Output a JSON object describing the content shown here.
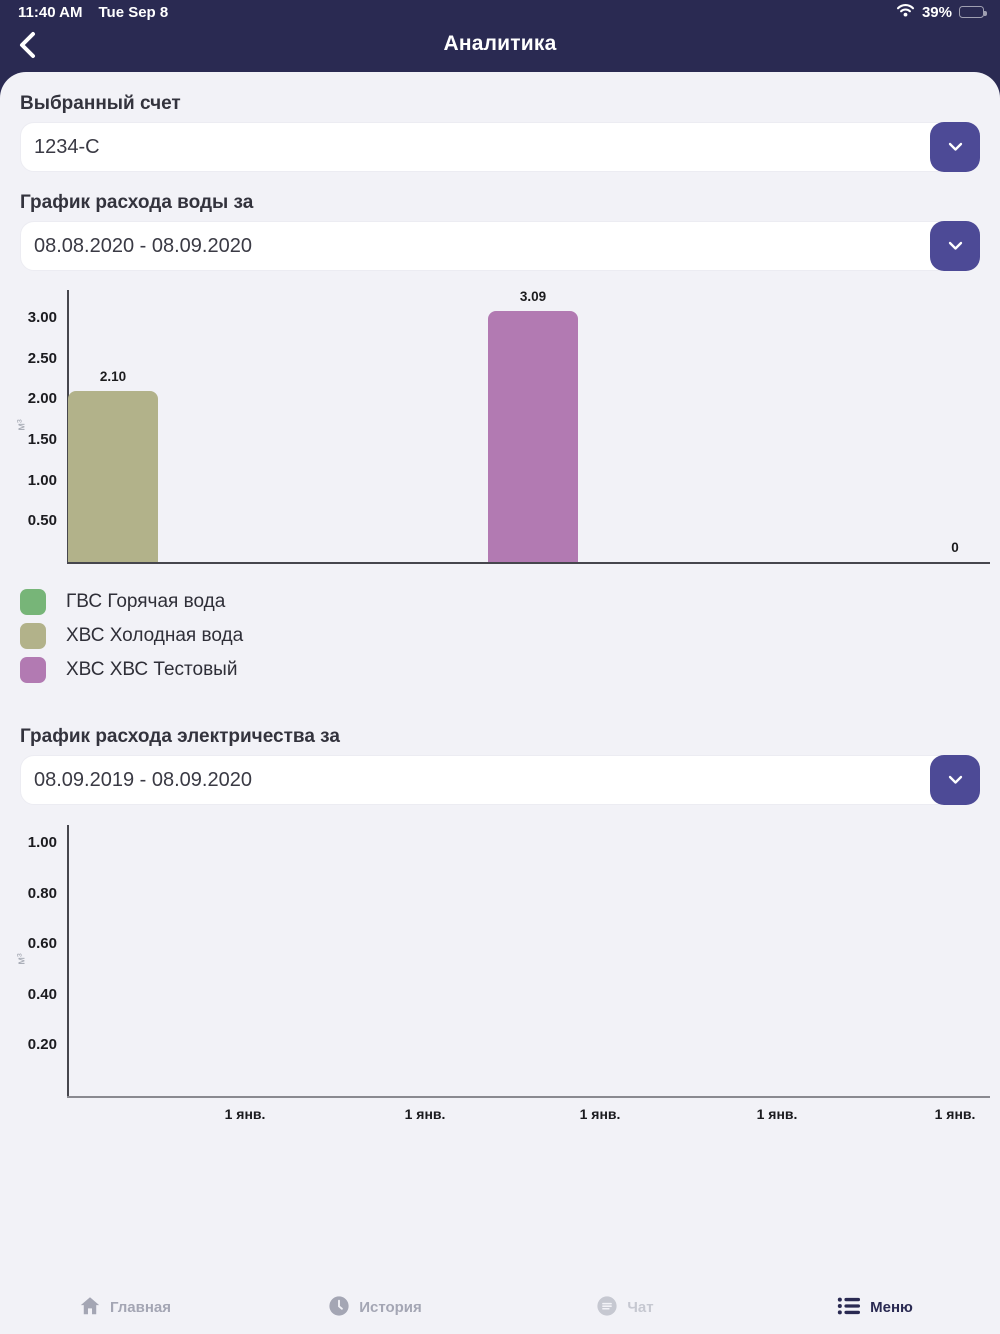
{
  "status_bar": {
    "time": "11:40 AM",
    "date": "Tue Sep 8",
    "battery_percent": "39%"
  },
  "nav": {
    "title": "Аналитика"
  },
  "account": {
    "label": "Выбранный счет",
    "value": "1234-C"
  },
  "water_section": {
    "label": "График расхода воды за",
    "period": "08.08.2020 - 08.09.2020"
  },
  "electricity_section": {
    "label": "График расхода электричества за",
    "period": "08.09.2019 - 08.09.2020"
  },
  "legend": {
    "items": [
      {
        "label": "ГВС Горячая вода",
        "color": "#77b578"
      },
      {
        "label": "ХВС Холодная вода",
        "color": "#b2b28a"
      },
      {
        "label": "ХВС ХВС Тестовый",
        "color": "#b27ab2"
      }
    ]
  },
  "chart_data": [
    {
      "id": "water",
      "type": "bar",
      "title": "График расхода воды за 08.08.2020 - 08.09.2020",
      "ylabel": "м³",
      "ylim": [
        0,
        3.35
      ],
      "y_ticks": [
        0.5,
        1.0,
        1.5,
        2.0,
        2.5,
        3.0
      ],
      "grid": false,
      "legend_position": "bottom-left",
      "bars": [
        {
          "name": "ХВС Холодная вода",
          "value": 2.1,
          "label": "2.10",
          "color": "#b2b28a"
        },
        {
          "name": "ХВС ХВС Тестовый",
          "value": 3.09,
          "label": "3.09",
          "color": "#b27ab2"
        },
        {
          "name": "ГВС Горячая вода",
          "value": 0,
          "label": "0",
          "color": "#77b578"
        }
      ],
      "x_labels": []
    },
    {
      "id": "elec",
      "type": "bar",
      "title": "График расхода электричества за 08.09.2019 - 08.09.2020",
      "ylabel": "м³",
      "ylim": [
        0,
        1.07
      ],
      "y_ticks": [
        0.2,
        0.4,
        0.6,
        0.8,
        1.0
      ],
      "grid": false,
      "bars": [],
      "x_labels": [
        "1 янв.",
        "1 янв.",
        "1 янв.",
        "1 янв.",
        "1 янв."
      ]
    }
  ],
  "tab_bar": {
    "items": [
      {
        "label": "Главная",
        "icon": "home-icon",
        "active": false
      },
      {
        "label": "История",
        "icon": "clock-icon",
        "active": false
      },
      {
        "label": "Чат",
        "icon": "chat-icon",
        "active": false
      },
      {
        "label": "Меню",
        "icon": "menu-icon",
        "active": true
      }
    ]
  },
  "colors": {
    "header_bg": "#2a2a52",
    "content_bg": "#f2f2f7",
    "accent_button": "#4d4a96",
    "axis_dark": "#46464d",
    "axis_gray": "#8a8a90",
    "tab_inactive": "#a4a6b4",
    "tab_dim": "#c6c8d1",
    "tab_active": "#2a2a52"
  }
}
